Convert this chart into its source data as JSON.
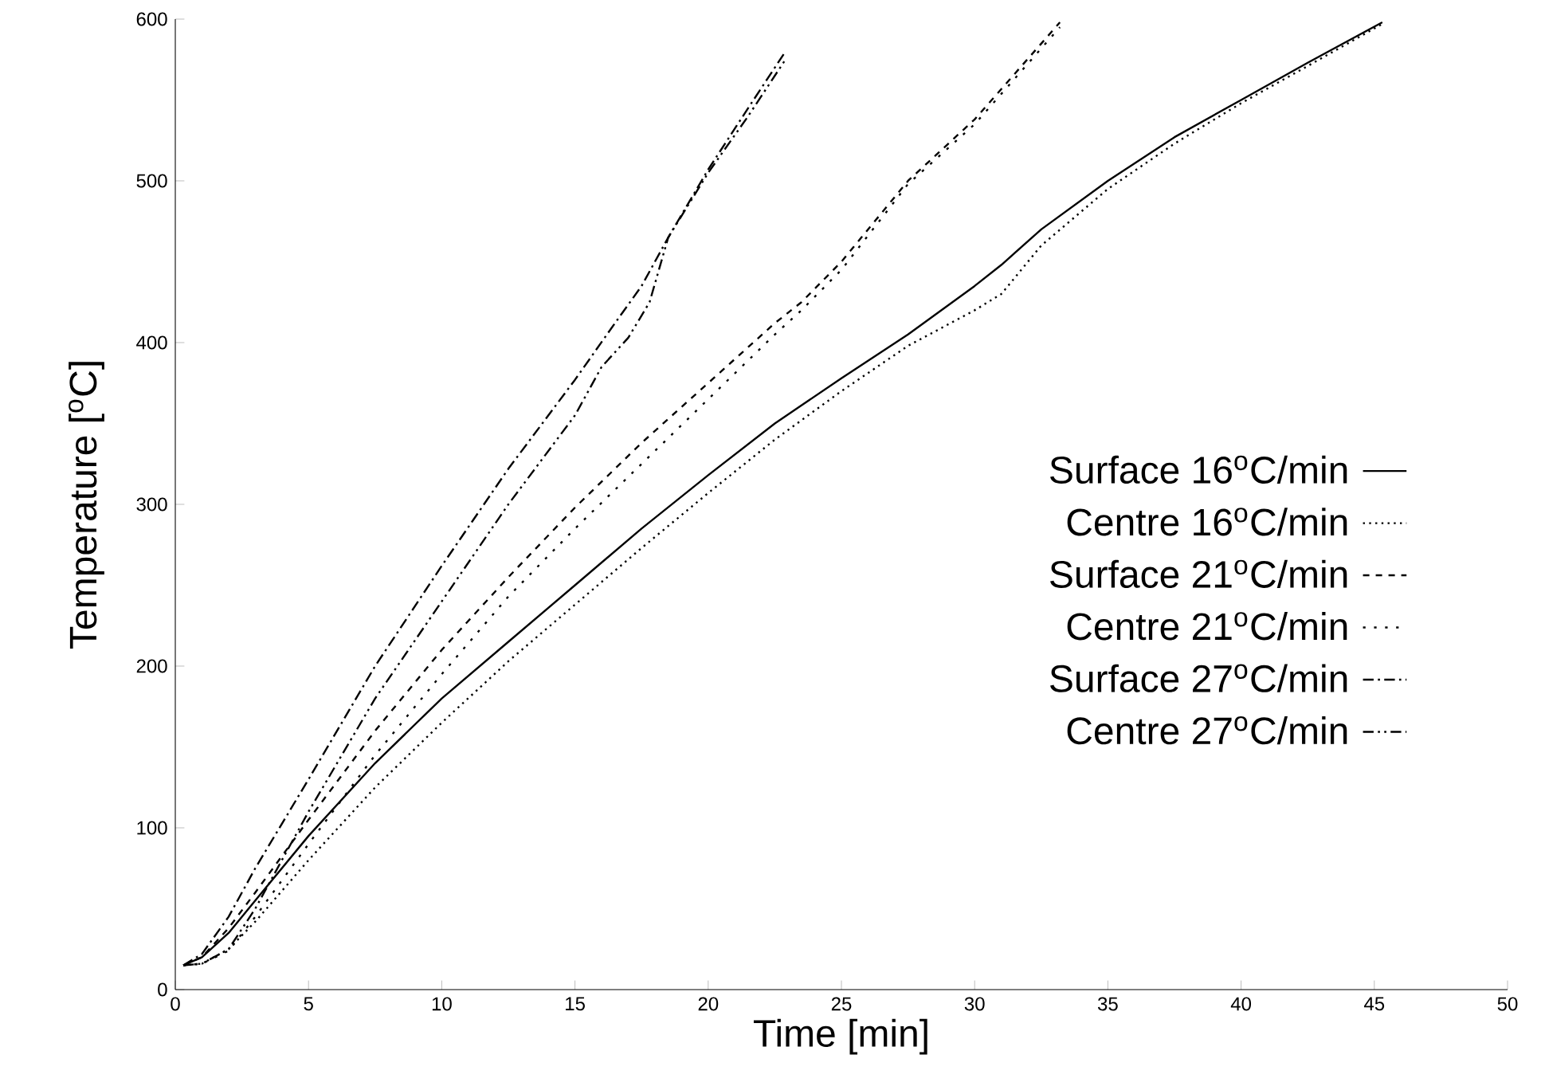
{
  "chart_data": {
    "type": "line",
    "xlabel": "Time [min]",
    "ylabel": "Temperature [$^{o}$C]",
    "xlim": [
      0,
      50
    ],
    "ylim": [
      0,
      600
    ],
    "xticks": [
      0,
      5,
      10,
      15,
      20,
      25,
      30,
      35,
      40,
      45,
      50
    ],
    "yticks": [
      0,
      100,
      200,
      300,
      400,
      500,
      600
    ],
    "legend": "right",
    "grid": false,
    "marker": "none",
    "series": [
      {
        "name": "Surface 16$^{o}$C/min",
        "color": "#000000",
        "line_style": "solid",
        "x": [
          0.3,
          1,
          2,
          3,
          5,
          7.5,
          10,
          12.5,
          15,
          17.5,
          20,
          22.5,
          25,
          27.5,
          30,
          31,
          32.5,
          35,
          37.5,
          40,
          42.5,
          45.3
        ],
        "values": [
          15,
          20,
          35,
          55,
          95,
          140,
          180,
          215,
          250,
          285,
          318,
          350,
          378,
          405,
          435,
          448,
          470,
          500,
          527,
          550,
          573,
          598
        ]
      },
      {
        "name": "Centre 16$^{o}$C/min",
        "color": "#000000",
        "line_style": "dotted",
        "x": [
          0.3,
          1,
          2,
          3,
          5,
          7.5,
          10,
          12.5,
          15,
          17.5,
          20,
          22.5,
          25,
          27.5,
          30,
          31,
          32.5,
          35,
          37.5,
          40,
          42.5,
          45.3
        ],
        "values": [
          15,
          16,
          25,
          42,
          80,
          125,
          165,
          203,
          238,
          273,
          307,
          340,
          370,
          398,
          420,
          430,
          460,
          495,
          523,
          548,
          571,
          597
        ]
      },
      {
        "name": "Surface 21$^{o}$C/min",
        "color": "#000000",
        "line_style": "dashed",
        "x": [
          0.3,
          1,
          2,
          3,
          5,
          7.5,
          10,
          12.5,
          15,
          17.5,
          20,
          22.5,
          23.5,
          25,
          27.5,
          30,
          33.2
        ],
        "values": [
          15,
          20,
          38,
          60,
          105,
          160,
          210,
          255,
          298,
          338,
          375,
          412,
          425,
          450,
          500,
          538,
          598
        ]
      },
      {
        "name": "Centre 21$^{o}$C/min",
        "color": "#000000",
        "line_style": "loosely dotted",
        "x": [
          0.3,
          1,
          2,
          3,
          5,
          7.5,
          10,
          12.5,
          15,
          17.5,
          20,
          22.5,
          23.5,
          25,
          27.5,
          30,
          33.2
        ],
        "values": [
          15,
          16,
          24,
          45,
          90,
          145,
          195,
          243,
          285,
          325,
          365,
          405,
          420,
          445,
          498,
          535,
          595
        ]
      },
      {
        "name": "Surface 27$^{o}$C/min",
        "color": "#000000",
        "line_style": "dashdot",
        "x": [
          0.3,
          1,
          2,
          3,
          5,
          7.5,
          10,
          12.5,
          15,
          16.5,
          17.5,
          18.5,
          20,
          21.5,
          22.9
        ],
        "values": [
          15,
          22,
          45,
          75,
          130,
          200,
          262,
          322,
          377,
          412,
          435,
          465,
          507,
          545,
          580
        ]
      },
      {
        "name": "Centre 27$^{o}$C/min",
        "color": "#000000",
        "line_style": "dashdotdot",
        "x": [
          0.3,
          1,
          2,
          3,
          5,
          7.5,
          10,
          12.5,
          15,
          16,
          17,
          17.8,
          18.5,
          20,
          21.5,
          22.9
        ],
        "values": [
          15,
          16,
          25,
          50,
          110,
          180,
          240,
          300,
          355,
          385,
          403,
          425,
          465,
          505,
          540,
          575
        ]
      }
    ]
  }
}
